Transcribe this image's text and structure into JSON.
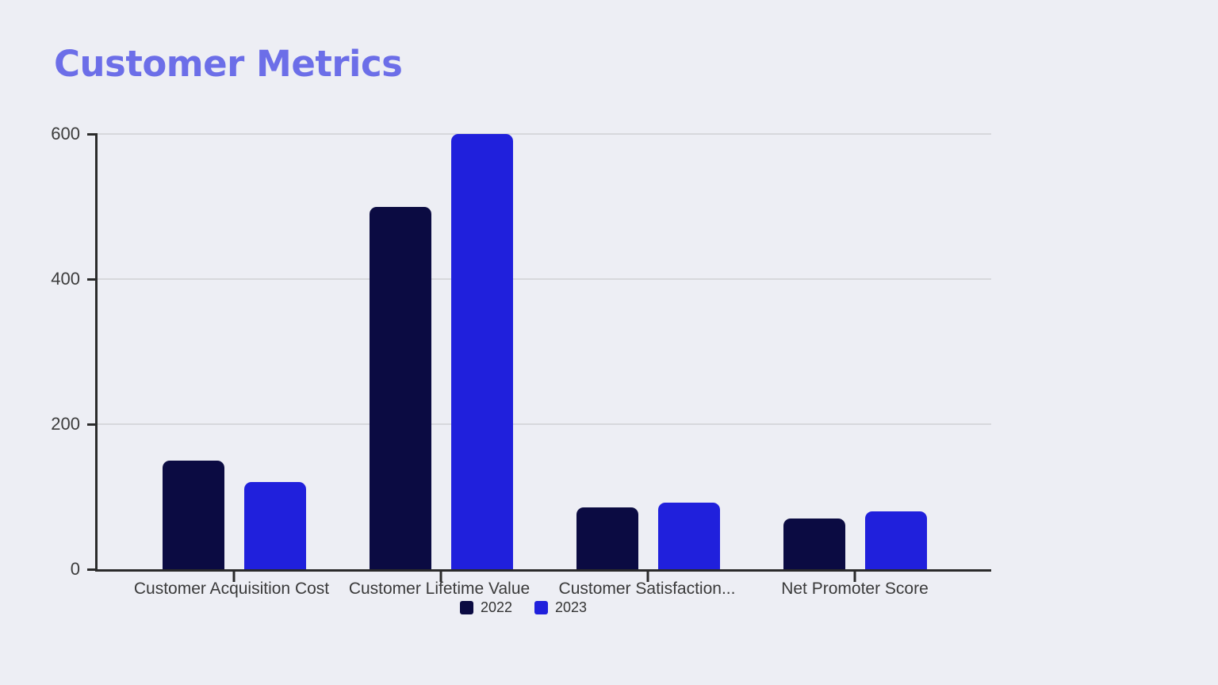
{
  "title": "Customer Metrics",
  "colors": {
    "background": "#edeef4",
    "title": "#6c6ee8",
    "axis": "#2b2b2b",
    "gridline": "#d7d8dc",
    "label_text": "#3a3a3a"
  },
  "chart_data": {
    "type": "bar",
    "title": "Customer Metrics",
    "categories": [
      "Customer Acquisition Cost",
      "Customer Lifetime Value",
      "Customer Satisfaction...",
      "Net Promoter Score"
    ],
    "series": [
      {
        "name": "2022",
        "color": "#0b0b42",
        "values": [
          150,
          500,
          85,
          70
        ]
      },
      {
        "name": "2023",
        "color": "#2020dc",
        "values": [
          120,
          600,
          92,
          80
        ]
      }
    ],
    "xlabel": "",
    "ylabel": "",
    "ylim": [
      0,
      600
    ],
    "yticks": [
      0,
      200,
      400,
      600
    ],
    "grid": "horizontal",
    "legend_position": "bottom-center"
  }
}
